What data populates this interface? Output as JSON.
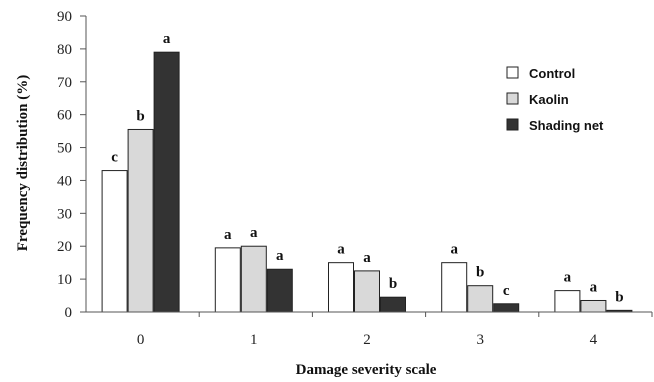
{
  "chart_data": {
    "type": "bar",
    "title": "",
    "xlabel": "Damage severity scale",
    "ylabel": "Frequency distribution (%)",
    "ylim": [
      0,
      90
    ],
    "yticks": [
      0,
      10,
      20,
      30,
      40,
      50,
      60,
      70,
      80,
      90
    ],
    "categories": [
      "0",
      "1",
      "2",
      "3",
      "4"
    ],
    "series": [
      {
        "name": "Control",
        "color": "#ffffff",
        "values": [
          43,
          19.5,
          15,
          15,
          6.5
        ],
        "labels": [
          "c",
          "a",
          "a",
          "a",
          "a"
        ]
      },
      {
        "name": "Kaolin",
        "color": "#d9d9d9",
        "values": [
          55.5,
          20,
          12.5,
          8,
          3.5
        ],
        "labels": [
          "b",
          "a",
          "a",
          "b",
          "a"
        ]
      },
      {
        "name": "Shading net",
        "color": "#333333",
        "values": [
          79,
          13,
          4.5,
          2.5,
          0.5
        ],
        "labels": [
          "a",
          "a",
          "b",
          "c",
          "b"
        ]
      }
    ],
    "legend_position": "top-right",
    "grid": false
  }
}
